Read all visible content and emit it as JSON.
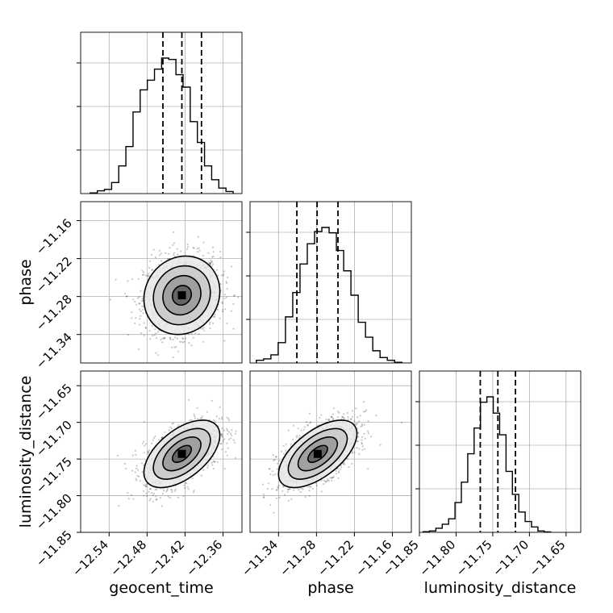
{
  "chart_data": {
    "type": "corner",
    "parameters": [
      {
        "label": "geocent_time",
        "range": [
          -12.585,
          -12.33
        ],
        "ticks": [
          "−12.54",
          "−12.48",
          "−12.42",
          "−12.36"
        ],
        "tick_values": [
          -12.54,
          -12.48,
          -12.42,
          -12.36
        ],
        "mean": -12.425,
        "sd": 0.03,
        "quantiles": [
          -12.455,
          -12.425,
          -12.394
        ]
      },
      {
        "label": "phase",
        "range": [
          -11.385,
          -11.13
        ],
        "ticks": [
          "−11.34",
          "−11.28",
          "−11.22",
          "−11.16"
        ],
        "tick_values": [
          -11.34,
          -11.28,
          -11.22,
          -11.16
        ],
        "mean": -11.278,
        "sd": 0.031,
        "quantiles": [
          -11.311,
          -11.279,
          -11.246
        ]
      },
      {
        "label": "luminosity_distance",
        "range": [
          -11.85,
          -11.63
        ],
        "ticks": [
          "−11.85",
          "−11.80",
          "−11.75",
          "−11.70",
          "−11.65"
        ],
        "tick_values": [
          -11.85,
          -11.8,
          -11.75,
          -11.7,
          -11.65
        ],
        "mean": -11.743,
        "sd": 0.023,
        "quantiles": [
          -11.767,
          -11.743,
          -11.719
        ]
      }
    ],
    "histograms": [
      {
        "param": "geocent_time",
        "bin_edges_start": -12.57,
        "bin_width": 0.0113,
        "counts": [
          0.5,
          2,
          3,
          8,
          20,
          34,
          59,
          75,
          82,
          90,
          98,
          97,
          86,
          77,
          52,
          37,
          20,
          10,
          4,
          1.5
        ]
      },
      {
        "param": "phase",
        "bin_edges_start": -11.375,
        "bin_width": 0.0115,
        "counts": [
          2,
          3,
          6,
          15,
          34,
          52,
          73,
          88,
          97,
          100,
          96,
          83,
          68,
          50,
          30,
          19,
          9,
          4,
          2,
          0.5
        ]
      },
      {
        "param": "luminosity_distance",
        "bin_edges_start": -11.845,
        "bin_width": 0.0087,
        "counts": [
          0.5,
          1,
          3,
          6,
          10,
          22,
          37,
          58,
          77,
          96,
          100,
          88,
          72,
          45,
          28,
          15,
          8,
          4,
          1,
          0.3
        ]
      }
    ],
    "correlations": {
      "phase_vs_geocent_time": 0.1,
      "luminosity_distance_vs_geocent_time": 0.55,
      "luminosity_distance_vs_phase": 0.6
    },
    "contour_levels_sigma": [
      0.5,
      1,
      1.5,
      2
    ],
    "grid": true,
    "style": {
      "line_color": "#000000",
      "grid_color": "#b0b0b0",
      "scatter_color": "#000000"
    }
  }
}
